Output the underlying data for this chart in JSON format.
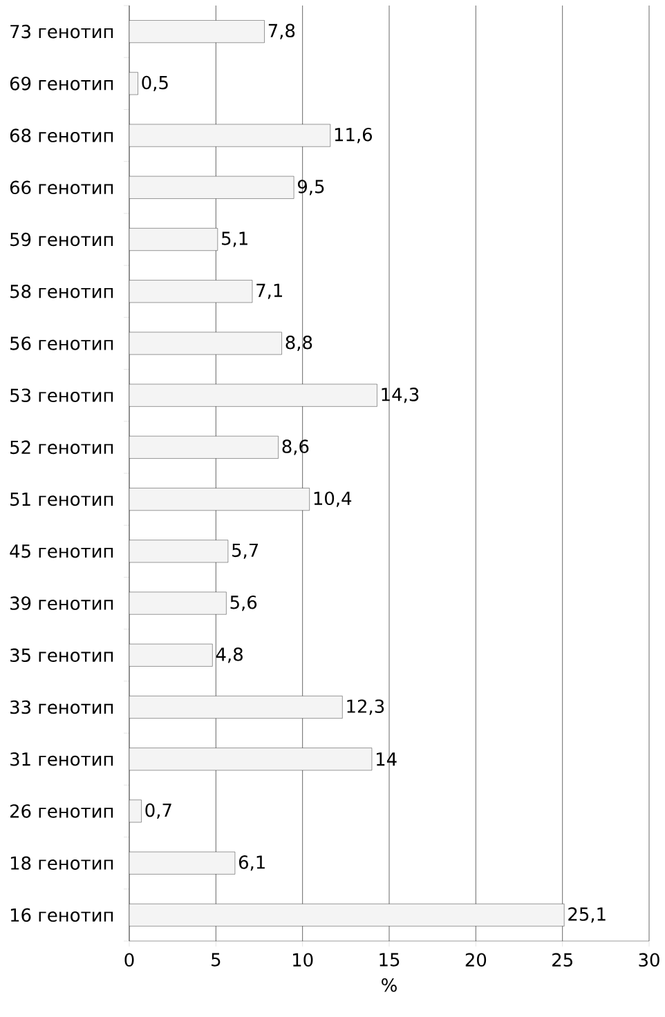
{
  "chart_data": {
    "type": "bar",
    "orientation": "horizontal",
    "xlabel": "%",
    "categories": [
      "73 генотип",
      "69 генотип",
      "68 генотип",
      "66 генотип",
      "59 генотип",
      "58 генотип",
      "56 генотип",
      "53 генотип",
      "52 генотип",
      "51 генотип",
      "45 генотип",
      "39 генотип",
      "35 генотип",
      "33 генотип",
      "31 генотип",
      "26 генотип",
      "18 генотип",
      "16 генотип"
    ],
    "values": [
      7.8,
      0.5,
      11.6,
      9.5,
      5.1,
      7.1,
      8.8,
      14.3,
      8.6,
      10.4,
      5.7,
      5.6,
      4.8,
      12.3,
      14,
      0.7,
      6.1,
      25.1
    ],
    "value_labels": [
      "7,8",
      "0,5",
      "11,6",
      "9,5",
      "5,1",
      "7,1",
      "8,8",
      "14,3",
      "8,6",
      "10,4",
      "5,7",
      "5,6",
      "4,8",
      "12,3",
      "14",
      "0,7",
      "6,1",
      "25,1"
    ],
    "color": "#f4f4f4",
    "xlim": [
      0,
      30
    ],
    "xticks": [
      0,
      5,
      10,
      15,
      20,
      25,
      30
    ],
    "grid": "x"
  }
}
